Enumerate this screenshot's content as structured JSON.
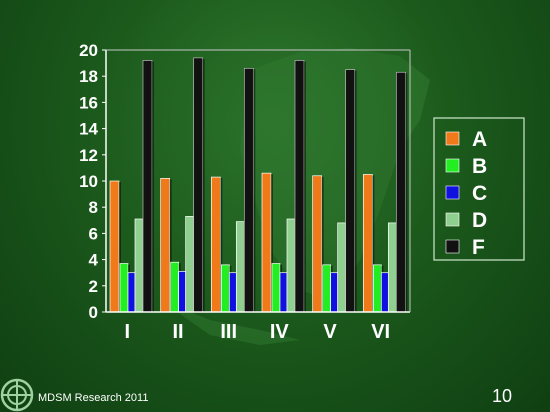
{
  "chart_data": {
    "type": "bar",
    "categories": [
      "I",
      "II",
      "III",
      "IV",
      "V",
      "VI"
    ],
    "series": [
      {
        "name": "A",
        "color": "#f07a1a",
        "values": [
          10.0,
          10.2,
          10.3,
          10.6,
          10.4,
          10.5
        ]
      },
      {
        "name": "B",
        "color": "#22ee22",
        "values": [
          3.7,
          3.8,
          3.6,
          3.7,
          3.6,
          3.6
        ]
      },
      {
        "name": "C",
        "color": "#1010e0",
        "values": [
          3.0,
          3.1,
          3.0,
          3.0,
          3.0,
          3.0
        ]
      },
      {
        "name": "D",
        "color": "#8fcf8f",
        "values": [
          7.1,
          7.3,
          6.9,
          7.1,
          6.8,
          6.8
        ]
      },
      {
        "name": "F",
        "color": "#111111",
        "values": [
          19.2,
          19.4,
          18.6,
          19.2,
          18.5,
          18.3
        ]
      }
    ],
    "ylim": [
      0,
      20
    ],
    "yticks": [
      0,
      2,
      4,
      6,
      8,
      10,
      12,
      14,
      16,
      18,
      20
    ],
    "grid": false,
    "legend": "right"
  },
  "footer": {
    "source": "MDSM Research 2011",
    "page_number": "10"
  }
}
